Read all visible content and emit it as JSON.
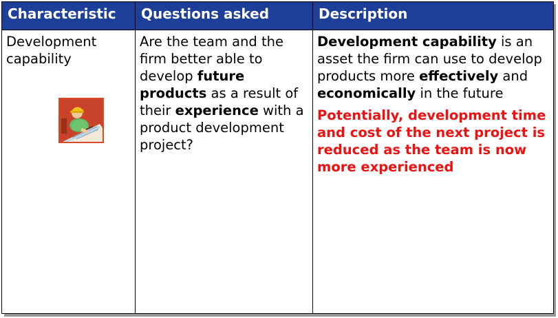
{
  "table": {
    "headers": {
      "characteristic": "Characteristic",
      "questions": "Questions asked",
      "description": "Description"
    },
    "row": {
      "characteristic": "Development capability",
      "questions": {
        "p1": "Are the team and the firm better able to develop ",
        "b1": "future products",
        "p2": " as a result of their ",
        "b2": "experience",
        "p3": " with a product development project?"
      },
      "description": {
        "b1": "Development capability",
        "p1": " is an asset the firm can use to develop products more ",
        "b2": "effectively",
        "p2": " and ",
        "b3": "economically",
        "p3": " in the future",
        "highlight": "Potentially, development time and cost of the next project is reduced as the team is now more experienced"
      }
    }
  },
  "colors": {
    "header_bg": "#1e3f99",
    "header_text": "#ffffff",
    "highlight": "#ee1111"
  },
  "icons": {
    "clipart": "worker-drafting-clipart"
  }
}
